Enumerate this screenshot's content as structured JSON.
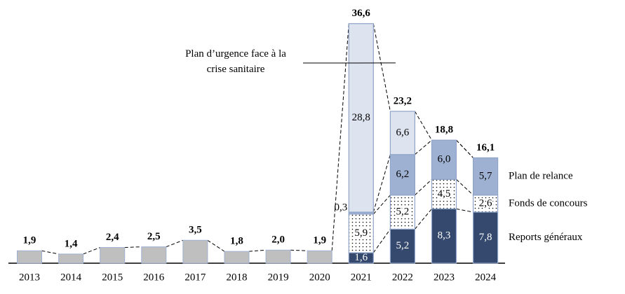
{
  "chart_data": {
    "type": "stacked-bar",
    "categories": [
      "2013",
      "2014",
      "2015",
      "2016",
      "2017",
      "2018",
      "2019",
      "2020",
      "2021",
      "2022",
      "2023",
      "2024"
    ],
    "totals": {
      "color": "#bfbfbf",
      "values": [
        1.9,
        1.4,
        2.4,
        2.5,
        3.5,
        1.8,
        2.0,
        1.9,
        36.6,
        23.2,
        18.8,
        16.1
      ],
      "value_labels": [
        "1,9",
        "1,4",
        "2,4",
        "2,5",
        "3,5",
        "1,8",
        "2,0",
        "1,9",
        "36,6",
        "23,2",
        "18,8",
        "16,1"
      ]
    },
    "series": [
      {
        "name": "Reports généraux",
        "color": "#34496d",
        "values": [
          null,
          null,
          null,
          null,
          null,
          null,
          null,
          null,
          1.6,
          5.2,
          8.3,
          7.8
        ],
        "value_labels": [
          null,
          null,
          null,
          null,
          null,
          null,
          null,
          null,
          "1,6",
          "5,2",
          "8,3",
          "7,8"
        ]
      },
      {
        "name": "Fonds de concours",
        "color": "#ffffff",
        "values": [
          null,
          null,
          null,
          null,
          null,
          null,
          null,
          null,
          5.9,
          5.2,
          4.5,
          2.6
        ],
        "value_labels": [
          null,
          null,
          null,
          null,
          null,
          null,
          null,
          null,
          "5,9",
          "5,2",
          "4,5",
          "2,6"
        ]
      },
      {
        "name": "Plan de relance",
        "color": "#9fb1d2",
        "values": [
          null,
          null,
          null,
          null,
          null,
          null,
          null,
          null,
          0.3,
          6.2,
          6.0,
          5.7
        ],
        "value_labels": [
          null,
          null,
          null,
          null,
          null,
          null,
          null,
          null,
          "0,3",
          "6,2",
          "6,0",
          "5,7"
        ]
      },
      {
        "name": "Plan d’urgence face à la crise sanitaire",
        "color": "#dee4ef",
        "values": [
          null,
          null,
          null,
          null,
          null,
          null,
          null,
          null,
          28.8,
          6.6,
          null,
          null
        ],
        "value_labels": [
          null,
          null,
          null,
          null,
          null,
          null,
          null,
          null,
          "28,8",
          "6,6",
          null,
          null
        ]
      }
    ],
    "ylim": [
      0,
      37
    ],
    "grid": false
  }
}
